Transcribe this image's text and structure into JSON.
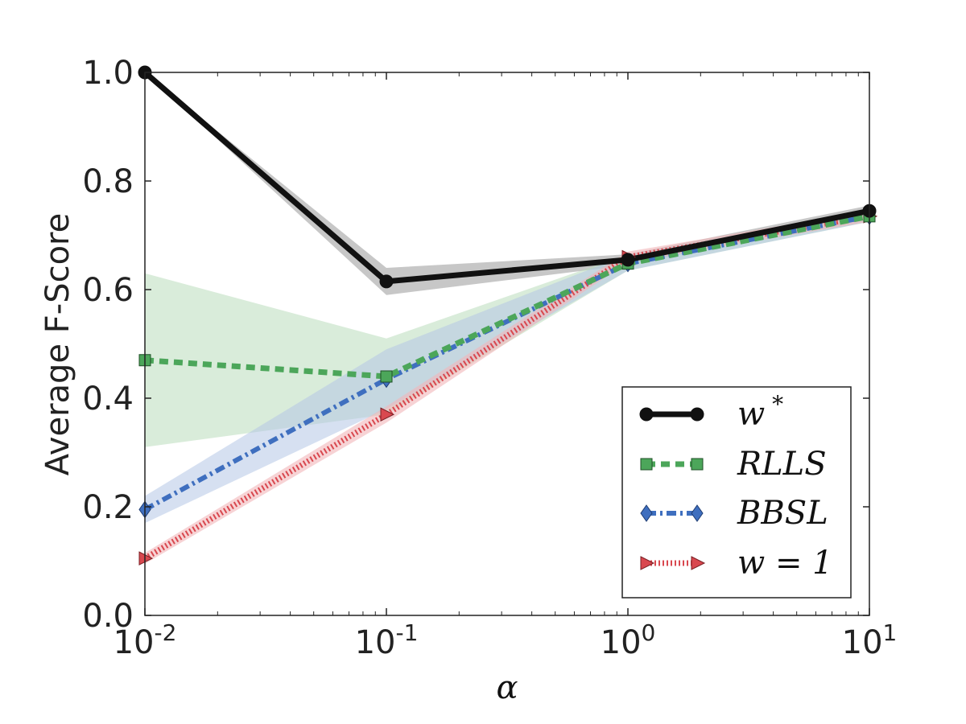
{
  "chart_data": {
    "type": "line",
    "x": [
      0.01,
      0.1,
      1,
      10
    ],
    "xscale": "log",
    "xlim": [
      0.01,
      10
    ],
    "ylim": [
      0.0,
      1.0
    ],
    "xlabel": "α",
    "ylabel": "Average F-Score",
    "x_ticks": [
      {
        "base": "10",
        "exp": "-2",
        "value": 0.01
      },
      {
        "base": "10",
        "exp": "-1",
        "value": 0.1
      },
      {
        "base": "10",
        "exp": "0",
        "value": 1
      },
      {
        "base": "10",
        "exp": "1",
        "value": 10
      }
    ],
    "y_ticks": [
      {
        "label": "0.0",
        "value": 0.0
      },
      {
        "label": "0.2",
        "value": 0.2
      },
      {
        "label": "0.4",
        "value": 0.4
      },
      {
        "label": "0.6",
        "value": 0.6
      },
      {
        "label": "0.8",
        "value": 0.8
      },
      {
        "label": "1.0",
        "value": 1.0
      }
    ],
    "grid": false,
    "legend_position": "bottom-right",
    "series": [
      {
        "name": "w*",
        "values": [
          1.0,
          0.615,
          0.655,
          0.745
        ],
        "lower": [
          1.0,
          0.59,
          0.645,
          0.735
        ],
        "upper": [
          1.0,
          0.64,
          0.665,
          0.755
        ],
        "color": "#111111",
        "marker": "circle",
        "style": "solid"
      },
      {
        "name": "RLLS",
        "values": [
          0.47,
          0.44,
          0.648,
          0.735
        ],
        "lower": [
          0.31,
          0.37,
          0.635,
          0.725
        ],
        "upper": [
          0.63,
          0.51,
          0.665,
          0.745
        ],
        "color": "#4ca65a",
        "marker": "square",
        "style": "dashed"
      },
      {
        "name": "BBSL",
        "values": [
          0.195,
          0.435,
          0.648,
          0.735
        ],
        "lower": [
          0.17,
          0.38,
          0.635,
          0.725
        ],
        "upper": [
          0.22,
          0.49,
          0.665,
          0.745
        ],
        "color": "#3f6fbf",
        "marker": "diamond",
        "style": "dashdot"
      },
      {
        "name": "w = 1",
        "values": [
          0.105,
          0.37,
          0.66,
          0.735
        ],
        "lower": [
          0.095,
          0.355,
          0.65,
          0.725
        ],
        "upper": [
          0.115,
          0.385,
          0.67,
          0.745
        ],
        "color": "#d9484f",
        "marker": "triangle-right",
        "style": "dotted"
      }
    ]
  },
  "legend": {
    "items": [
      {
        "label": "w",
        "sup": "*"
      },
      {
        "label": "RLLS",
        "sup": ""
      },
      {
        "label": "BBSL",
        "sup": ""
      },
      {
        "label": "w = 1",
        "sup": ""
      }
    ]
  },
  "colors": {
    "w_star": "#111111",
    "rlls": "#4ca65a",
    "bbsl": "#3f6fbf",
    "w_one": "#d9484f",
    "w_star_band": "#bdbdbd",
    "rlls_band": "#b9dcbc",
    "bbsl_band": "#b5c6e6",
    "w_one_band": "#f2b6b9"
  }
}
